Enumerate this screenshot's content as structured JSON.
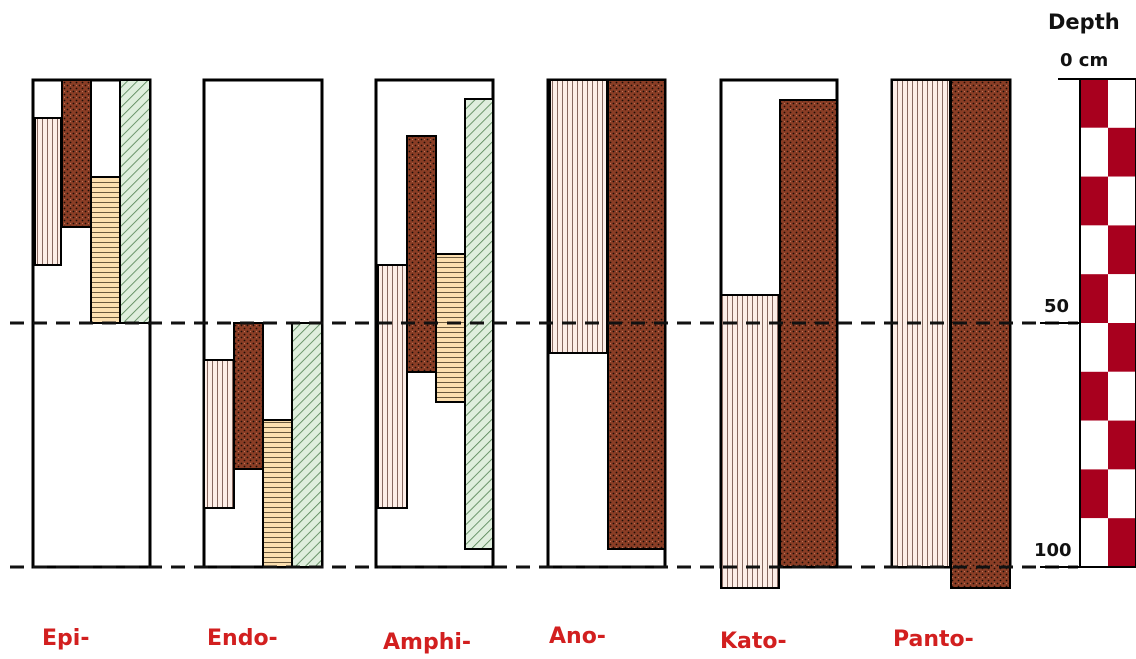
{
  "depth_scale": {
    "title": "Depth",
    "top_label": "0 cm",
    "mid_label": "50",
    "bottom_label": "100"
  },
  "profiles": [
    {
      "label": "Epi-"
    },
    {
      "label": "Endo-"
    },
    {
      "label": "Amphi-"
    },
    {
      "label": "Ano-"
    },
    {
      "label": "Kato-"
    },
    {
      "label": "Panto-"
    }
  ],
  "colors": {
    "label": "#d21f1f",
    "dotted_fill": "#8a3d25",
    "hatch_fill": "#dfeedd",
    "hatch_line": "#4f7f4f",
    "vline_fill": "#fdeee7",
    "hline_fill": "#fde0b0",
    "scale_red": "#a8001e"
  }
}
